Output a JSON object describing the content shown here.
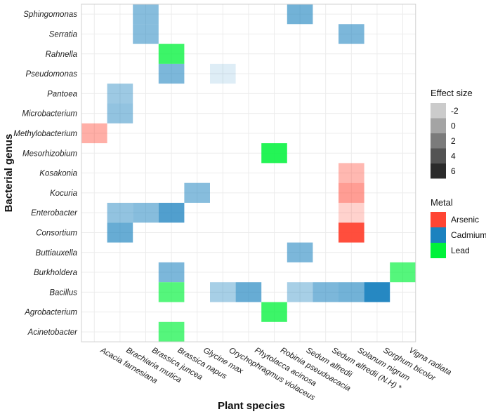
{
  "chart_data": {
    "type": "heatmap",
    "xlabel": "Plant species",
    "ylabel": "Bacterial genus",
    "x": [
      "Acacia farnesiana",
      "Brachiaria mutica",
      "Brassica juncea",
      "Brassica napus",
      "Glycine max",
      "Orychophragmus violaceus",
      "Phytolacca acinosa",
      "Robinia pseudoacacia",
      "Sedum alfredii",
      "Sedum alfredii (N.H) *",
      "Solanum nigrum",
      "Sorghum bicolor",
      "Vigna radiata"
    ],
    "y": [
      "Sphingomonas",
      "Serratia",
      "Rahnella",
      "Pseudomonas",
      "Pantoea",
      "Microbacterium",
      "Methylobacterium",
      "Mesorhizobium",
      "Kosakonia",
      "Kocuria",
      "Enterobacter",
      "Consortium",
      "Buttiauxella",
      "Burkholdera",
      "Bacillus",
      "Agrobacterium",
      "Acinetobacter"
    ],
    "cells": [
      {
        "genus": "Sphingomonas",
        "plant": "Brassica juncea",
        "metal": "Cadmium",
        "effect": 1.5
      },
      {
        "genus": "Sphingomonas",
        "plant": "Sedum alfredii",
        "metal": "Cadmium",
        "effect": 2.5
      },
      {
        "genus": "Serratia",
        "plant": "Brassica juncea",
        "metal": "Cadmium",
        "effect": 1.5
      },
      {
        "genus": "Serratia",
        "plant": "Solanum nigrum",
        "metal": "Cadmium",
        "effect": 2
      },
      {
        "genus": "Rahnella",
        "plant": "Brassica napus",
        "metal": "Lead",
        "effect": 4
      },
      {
        "genus": "Pseudomonas",
        "plant": "Brassica napus",
        "metal": "Cadmium",
        "effect": 2
      },
      {
        "genus": "Pseudomonas",
        "plant": "Orychophragmus violaceus",
        "metal": "Cadmium",
        "effect": -2.5
      },
      {
        "genus": "Pantoea",
        "plant": "Brachiaria mutica",
        "metal": "Cadmium",
        "effect": 0.5
      },
      {
        "genus": "Microbacterium",
        "plant": "Brachiaria mutica",
        "metal": "Cadmium",
        "effect": 1
      },
      {
        "genus": "Methylobacterium",
        "plant": "Acacia farnesiana",
        "metal": "Arsenic",
        "effect": 0.5
      },
      {
        "genus": "Mesorhizobium",
        "plant": "Robinia pseudoacacia",
        "metal": "Lead",
        "effect": 5
      },
      {
        "genus": "Kosakonia",
        "plant": "Solanum nigrum",
        "metal": "Arsenic",
        "effect": 0
      },
      {
        "genus": "Kocuria",
        "plant": "Glycine max",
        "metal": "Cadmium",
        "effect": 1.5
      },
      {
        "genus": "Kocuria",
        "plant": "Solanum nigrum",
        "metal": "Arsenic",
        "effect": 1.5
      },
      {
        "genus": "Enterobacter",
        "plant": "Brachiaria mutica",
        "metal": "Cadmium",
        "effect": 1
      },
      {
        "genus": "Enterobacter",
        "plant": "Brassica juncea",
        "metal": "Cadmium",
        "effect": 1.5
      },
      {
        "genus": "Enterobacter",
        "plant": "Brassica napus",
        "metal": "Cadmium",
        "effect": 4
      },
      {
        "genus": "Enterobacter",
        "plant": "Solanum nigrum",
        "metal": "Arsenic",
        "effect": -1.5
      },
      {
        "genus": "Consortium",
        "plant": "Brachiaria mutica",
        "metal": "Cadmium",
        "effect": 3
      },
      {
        "genus": "Consortium",
        "plant": "Solanum nigrum",
        "metal": "Arsenic",
        "effect": 6
      },
      {
        "genus": "Buttiauxella",
        "plant": "Sedum alfredii",
        "metal": "Cadmium",
        "effect": 2
      },
      {
        "genus": "Burkholdera",
        "plant": "Brassica napus",
        "metal": "Cadmium",
        "effect": 2
      },
      {
        "genus": "Burkholdera",
        "plant": "Vigna radiata",
        "metal": "Lead",
        "effect": 3
      },
      {
        "genus": "Bacillus",
        "plant": "Brassica napus",
        "metal": "Lead",
        "effect": 3
      },
      {
        "genus": "Bacillus",
        "plant": "Orychophragmus violaceus",
        "metal": "Cadmium",
        "effect": 0
      },
      {
        "genus": "Bacillus",
        "plant": "Phytolacca acinosa",
        "metal": "Cadmium",
        "effect": 3
      },
      {
        "genus": "Bacillus",
        "plant": "Sedum alfredii",
        "metal": "Cadmium",
        "effect": 0
      },
      {
        "genus": "Bacillus",
        "plant": "Sedum alfredii (N.H) *",
        "metal": "Cadmium",
        "effect": 2
      },
      {
        "genus": "Bacillus",
        "plant": "Solanum nigrum",
        "metal": "Cadmium",
        "effect": 2.5
      },
      {
        "genus": "Bacillus",
        "plant": "Sorghum bicolor",
        "metal": "Cadmium",
        "effect": 6
      },
      {
        "genus": "Agrobacterium",
        "plant": "Robinia pseudoacacia",
        "metal": "Lead",
        "effect": 4
      },
      {
        "genus": "Acinetobacter",
        "plant": "Brassica napus",
        "metal": "Lead",
        "effect": 3
      }
    ],
    "legend": {
      "effect_title": "Effect size",
      "effect_levels": [
        {
          "label": "-2",
          "color": "#cbcbcb"
        },
        {
          "label": "0",
          "color": "#a4a4a4"
        },
        {
          "label": "2",
          "color": "#7b7b7b"
        },
        {
          "label": "4",
          "color": "#535353"
        },
        {
          "label": "6",
          "color": "#2b2b2b"
        }
      ],
      "metal_title": "Metal",
      "metals": [
        {
          "label": "Arsenic",
          "color": "#ff4533"
        },
        {
          "label": "Cadmium",
          "color": "#1b82bf"
        },
        {
          "label": "Lead",
          "color": "#00f23a"
        }
      ]
    },
    "effect_range": [
      -3,
      6.5
    ]
  }
}
